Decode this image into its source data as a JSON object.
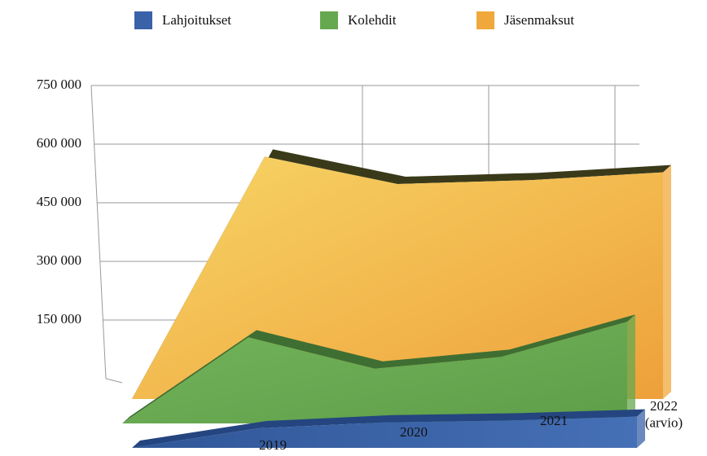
{
  "chart_data": {
    "type": "area3d",
    "categories": [
      null,
      "2019",
      "2020",
      "2021",
      "2022 (arvio)"
    ],
    "series": [
      {
        "name": "Lahjoitukset",
        "color": "#3a62a8",
        "values": [
          0,
          50000,
          65000,
          70000,
          80000
        ]
      },
      {
        "name": "Kolehdit",
        "color": "#66a84f",
        "values": [
          0,
          220000,
          140000,
          170000,
          260000
        ]
      },
      {
        "name": "Jäsenmaksut",
        "color": "#f0a83c",
        "values": [
          0,
          620000,
          550000,
          560000,
          580000
        ]
      }
    ],
    "ylim": [
      0,
      750000
    ],
    "yticks": [
      {
        "value": 150000,
        "label": "150 000"
      },
      {
        "value": 300000,
        "label": "300 000"
      },
      {
        "value": 450000,
        "label": "450 000"
      },
      {
        "value": 600000,
        "label": "600 000"
      },
      {
        "value": 750000,
        "label": "750 000"
      }
    ],
    "grid": true,
    "legend": "top"
  }
}
